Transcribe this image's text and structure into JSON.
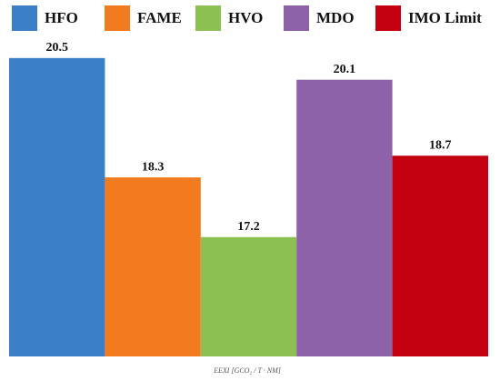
{
  "chart_data": {
    "type": "bar",
    "categories": [
      "HFO",
      "FAME",
      "HVO",
      "MDO",
      "IMO Limit"
    ],
    "values": [
      20.5,
      18.3,
      17.2,
      20.1,
      18.7
    ],
    "colors": [
      "#3b7fc6",
      "#f27a1f",
      "#8dc052",
      "#8d62a9",
      "#c2000f"
    ],
    "xlabel": "EEXI [GCO₂ / T · NM]",
    "ylim": [
      15,
      21
    ]
  }
}
